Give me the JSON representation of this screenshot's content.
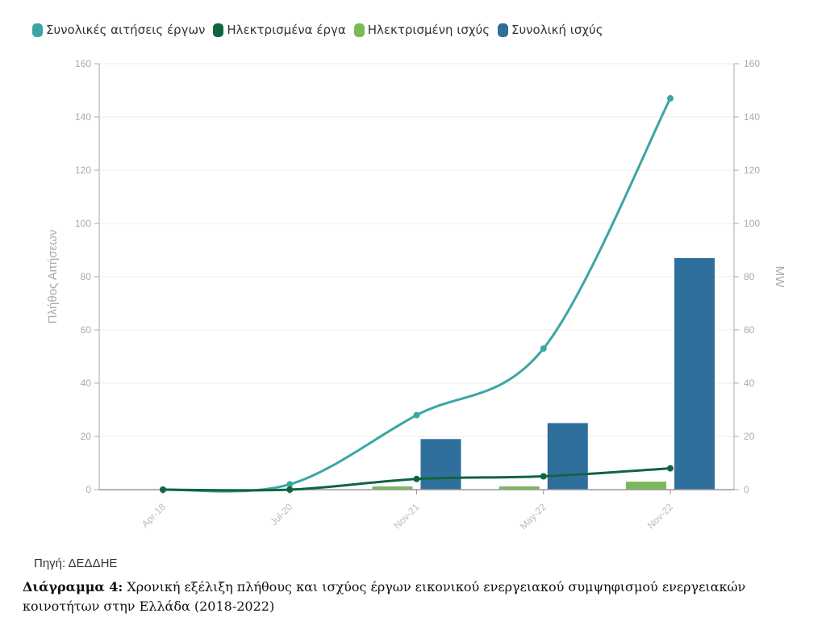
{
  "chart_data": {
    "type": "bar+line",
    "categories": [
      "Apr-18",
      "Jul-20",
      "Nov-21",
      "May-22",
      "Nov-22"
    ],
    "y_left": {
      "label": "Πλήθος Αιτήσεων",
      "range": [
        0,
        160
      ],
      "ticks": [
        0,
        20,
        40,
        60,
        80,
        100,
        120,
        140,
        160
      ]
    },
    "y_right": {
      "label": "MW",
      "range": [
        0,
        160
      ],
      "ticks": [
        0,
        20,
        40,
        60,
        80,
        100,
        120,
        140,
        160
      ]
    },
    "grid": true,
    "legend_position": "top-left",
    "series": [
      {
        "name": "Συνολικές αιτήσεις έργων",
        "type": "line",
        "axis": "left",
        "color": "#3aa6a4",
        "values": [
          0,
          2,
          28,
          53,
          147
        ]
      },
      {
        "name": "Ηλεκτρισμένα έργα",
        "type": "line",
        "axis": "left",
        "color": "#116440",
        "values": [
          0,
          0,
          4,
          5,
          8
        ]
      },
      {
        "name": "Ηλεκτρισμένη ισχύς",
        "type": "bar",
        "axis": "right",
        "color": "#7ab85a",
        "values": [
          0,
          0,
          1.2,
          1.2,
          3
        ]
      },
      {
        "name": "Συνολική ισχύς",
        "type": "bar",
        "axis": "right",
        "color": "#2f6f9c",
        "values": [
          0,
          0,
          19,
          25,
          87
        ]
      }
    ]
  },
  "source": "Πηγή: ΔΕΔΔΗΕ",
  "caption": {
    "label": "Διάγραμμα 4:",
    "text": " Χρονική εξέλιξη πλήθους και ισχύος έργων εικονικού ενεργειακού συμψηφισμού ενεργειακών κοινοτήτων στην Ελλάδα (2018-2022)"
  }
}
